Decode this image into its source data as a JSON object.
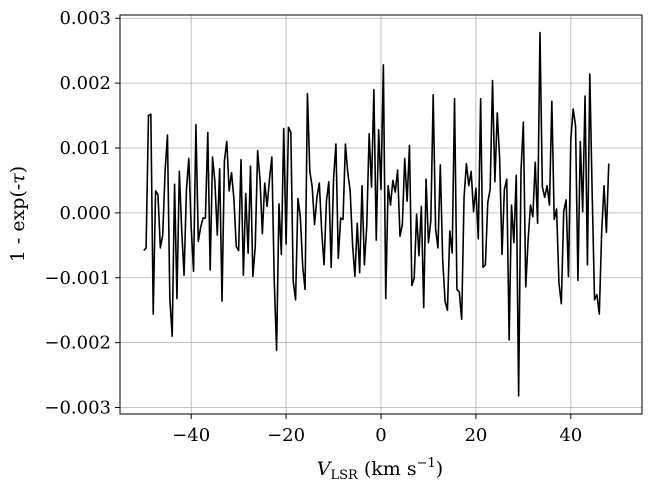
{
  "chart_data": {
    "type": "line",
    "title": "",
    "xlabel": "V_LSR (km s^-1)",
    "xlabel_main": "V",
    "xlabel_sub": "LSR",
    "xlabel_unit": " (km s",
    "xlabel_exp": "−1",
    "xlabel_close": ")",
    "ylabel": "1 - exp(-τ)",
    "ylabel_main": "1 - exp(-",
    "ylabel_tau": "τ",
    "ylabel_close": ")",
    "xlim": [
      -55,
      55
    ],
    "ylim": [
      -0.0031,
      0.00305
    ],
    "grid": true,
    "xticks": [
      -40,
      -20,
      0,
      20,
      40
    ],
    "xtick_labels": [
      "−40",
      "−20",
      "0",
      "20",
      "40"
    ],
    "yticks": [
      -0.003,
      -0.002,
      -0.001,
      0.0,
      0.001,
      0.002,
      0.003
    ],
    "ytick_labels": [
      "−0.003",
      "−0.002",
      "−0.001",
      "0.000",
      "0.001",
      "0.002",
      "0.003"
    ],
    "series_color": "#000000",
    "series": [
      {
        "x_start": -50,
        "x_step": 0.5,
        "values": [
          -0.00058,
          -0.00054,
          0.0015,
          0.00152,
          -0.00156,
          0.00034,
          0.00028,
          -0.00054,
          -0.00034,
          0.00064,
          0.0012,
          -0.00132,
          -0.0019,
          0.00044,
          -0.00132,
          0.00064,
          -0.00026,
          -0.00096,
          0.00036,
          0.00084,
          -0.00022,
          -0.0009,
          0.00136,
          -0.00044,
          -0.00022,
          -8e-05,
          -8e-05,
          0.00124,
          -0.00088,
          0.00086,
          0.00048,
          -0.00034,
          0.00068,
          -0.00136,
          0.0008,
          0.0011,
          0.00034,
          0.00062,
          0.00022,
          -0.00052,
          -0.00058,
          0.00082,
          -0.00096,
          0.0003,
          -0.00062,
          0.00072,
          -0.00098,
          -0.00052,
          0.00096,
          0.00052,
          -0.00032,
          0.00046,
          0.0001,
          0.00052,
          0.00086,
          -0.00104,
          -0.00212,
          0.00014,
          -0.00064,
          0.0013,
          -0.00048,
          0.00132,
          0.00124,
          -0.00106,
          -0.00134,
          0.00022,
          -6e-05,
          -0.00082,
          -0.00118,
          0.00184,
          0.00064,
          0.0004,
          -0.00018,
          0.00024,
          0.00046,
          -0.00028,
          -0.0008,
          0.00018,
          0.00048,
          -0.00084,
          0.00052,
          0.00106,
          -0.0007,
          -8e-05,
          -0.0001,
          0.00106,
          0.00062,
          0.00034,
          -0.00048,
          -0.00098,
          -0.00016,
          -0.00092,
          0.00042,
          -0.0008,
          -0.0002,
          0.00122,
          0.0004,
          0.0019,
          -0.00042,
          0.00128,
          0.00036,
          0.00228,
          -0.00132,
          0.00042,
          0.00012,
          0.0005,
          0.00032,
          0.00066,
          -0.00036,
          -0.00018,
          0.00084,
          0.00018,
          0.00104,
          -0.00112,
          -0.001,
          -2e-05,
          -0.00066,
          0.0001,
          -0.00146,
          0.00052,
          -0.00046,
          -0.00012,
          0.00182,
          -0.00024,
          -0.00054,
          0.00074,
          -0.00072,
          -0.00136,
          -0.0015,
          -0.00028,
          -0.00062,
          0.00176,
          -0.00118,
          -0.00122,
          -0.00164,
          0.00024,
          0.00076,
          0.00042,
          0.00064,
          2e-05,
          0.00038,
          -0.0004,
          0.00176,
          -0.00084,
          -0.0008,
          0.00016,
          0.00036,
          0.00204,
          0.00048,
          0.00154,
          0.00084,
          -0.00064,
          0.00036,
          0.00052,
          -0.00196,
          0.00012,
          -0.00046,
          0.00058,
          -0.00282,
          0.00064,
          0.0014,
          -0.00114,
          -0.00042,
          0.00012,
          -6e-05,
          0.00078,
          -0.00016,
          0.00278,
          0.0004,
          0.00024,
          0.00042,
          0.00012,
          0.00172,
          -0.0001,
          6e-05,
          -0.00108,
          -0.0014,
          2e-05,
          0.0002,
          -0.00098,
          0.00114,
          0.0016,
          0.00134,
          -0.00104,
          0.0011,
          2e-05,
          0.0018,
          -0.0008,
          0.00214,
          0.0003,
          -0.00134,
          -0.00126,
          -0.00156,
          -0.0003,
          0.00042,
          -0.0003,
          0.00076
        ]
      }
    ]
  }
}
